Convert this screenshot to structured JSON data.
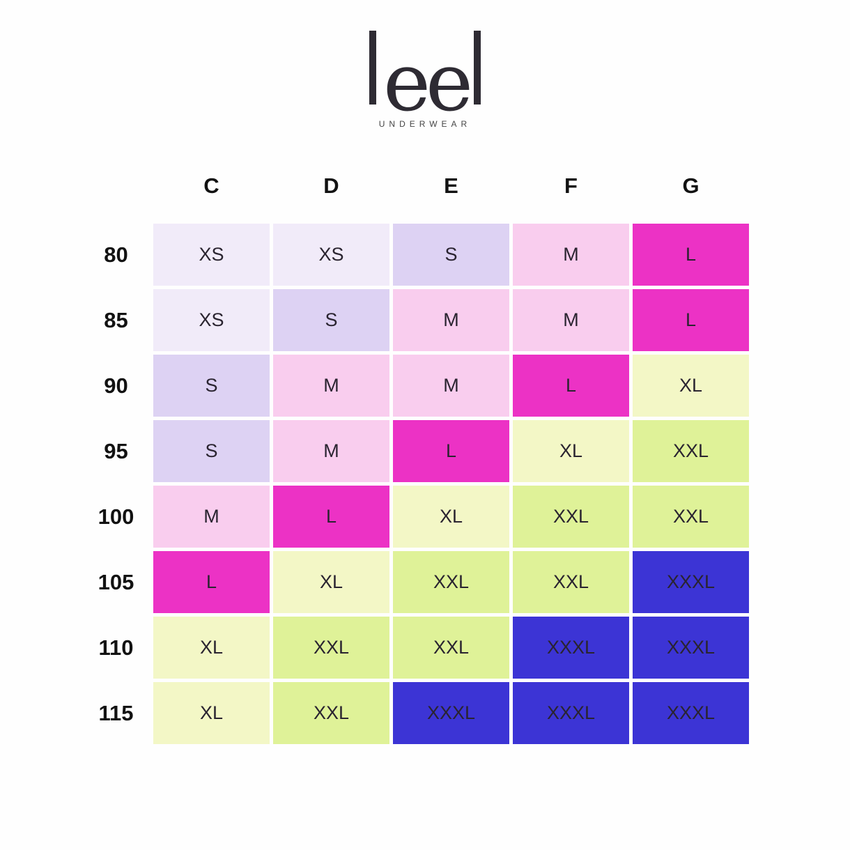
{
  "brand": {
    "logo_text": "leel",
    "tagline": "UNDERWEAR"
  },
  "colors": {
    "background": "#fefefe",
    "logo": "#2e2b33",
    "heading": "#121212",
    "tagline": "#454545",
    "cell_text": "#2a2430"
  },
  "chart_data": {
    "type": "table",
    "columns": [
      "C",
      "D",
      "E",
      "F",
      "G"
    ],
    "rows": [
      "80",
      "85",
      "90",
      "95",
      "100",
      "105",
      "110",
      "115"
    ],
    "cells": [
      [
        "XS",
        "XS",
        "S",
        "M",
        "L"
      ],
      [
        "XS",
        "S",
        "M",
        "M",
        "L"
      ],
      [
        "S",
        "M",
        "M",
        "L",
        "XL"
      ],
      [
        "S",
        "M",
        "L",
        "XL",
        "XXL"
      ],
      [
        "M",
        "L",
        "XL",
        "XXL",
        "XXL"
      ],
      [
        "L",
        "XL",
        "XXL",
        "XXL",
        "XXXL"
      ],
      [
        "XL",
        "XXL",
        "XXL",
        "XXXL",
        "XXXL"
      ],
      [
        "XL",
        "XXL",
        "XXXL",
        "XXXL",
        "XXXL"
      ]
    ],
    "size_colors": {
      "XS": "#f1ebf9",
      "S": "#ddd2f3",
      "M": "#f9cdee",
      "L": "#ec32c5",
      "XL": "#f3f7c6",
      "XXL": "#dff298",
      "XXXL": "#3c34d5"
    },
    "legend_position": "none",
    "grid": false
  }
}
